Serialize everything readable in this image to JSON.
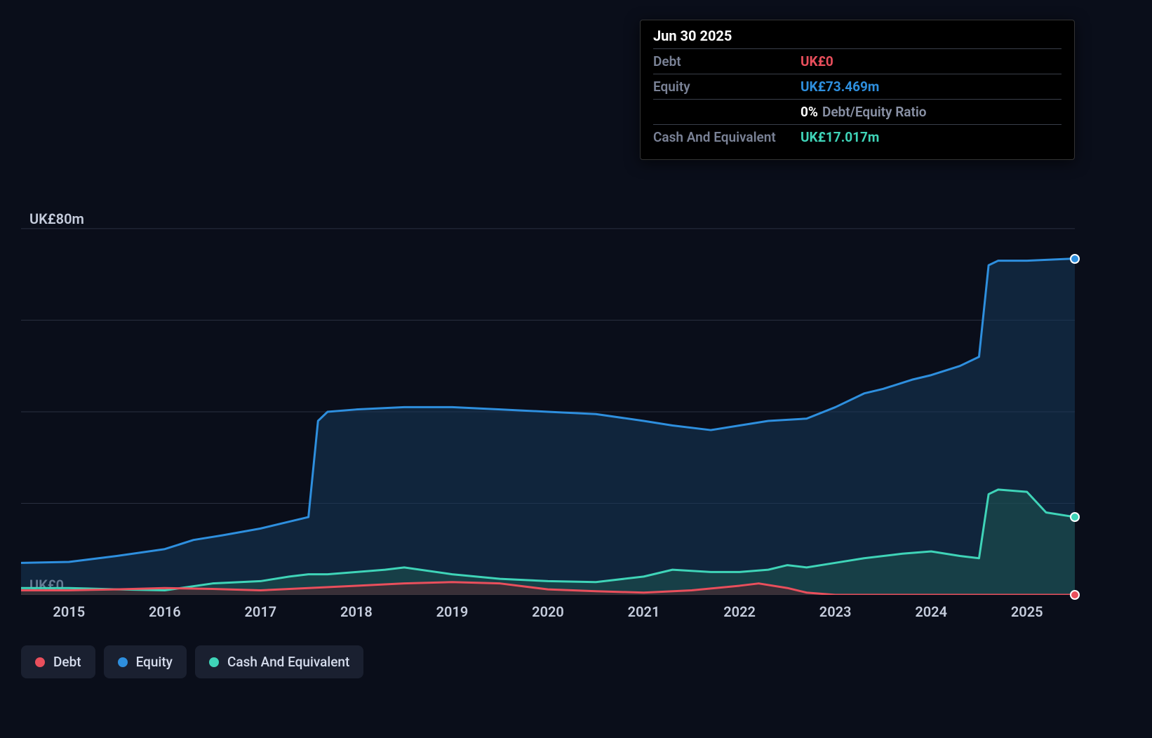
{
  "chart": {
    "type": "area",
    "background_color": "#0a0e1a",
    "grid_color": "#2a3040",
    "baseline_color": "#3d4558",
    "y_axis": {
      "min": 0,
      "max": 95,
      "labels": [
        {
          "value": 0,
          "text": "UK£0"
        },
        {
          "value": 80,
          "text": "UK£80m"
        }
      ],
      "gridlines": [
        0,
        20,
        40,
        60,
        80
      ],
      "label_color": "#c5ccdc",
      "label_fontsize": 20
    },
    "x_axis": {
      "min": 2014.5,
      "max": 2025.5,
      "ticks": [
        2015,
        2016,
        2017,
        2018,
        2019,
        2020,
        2021,
        2022,
        2023,
        2024,
        2025
      ],
      "label_color": "#c5ccdc",
      "label_fontsize": 20
    },
    "series": {
      "equity": {
        "label": "Equity",
        "color": "#2e8fde",
        "fill_color": "#16395a",
        "fill_opacity": 0.55,
        "line_width": 3,
        "points": [
          [
            2014.5,
            7
          ],
          [
            2015.0,
            7.2
          ],
          [
            2015.5,
            8.5
          ],
          [
            2016.0,
            10
          ],
          [
            2016.3,
            12
          ],
          [
            2016.6,
            13
          ],
          [
            2017.0,
            14.5
          ],
          [
            2017.3,
            16
          ],
          [
            2017.5,
            17
          ],
          [
            2017.6,
            38
          ],
          [
            2017.7,
            40
          ],
          [
            2018.0,
            40.5
          ],
          [
            2018.5,
            41
          ],
          [
            2019.0,
            41
          ],
          [
            2019.5,
            40.5
          ],
          [
            2020.0,
            40
          ],
          [
            2020.5,
            39.5
          ],
          [
            2021.0,
            38
          ],
          [
            2021.3,
            37
          ],
          [
            2021.7,
            36
          ],
          [
            2022.0,
            37
          ],
          [
            2022.3,
            38
          ],
          [
            2022.7,
            38.5
          ],
          [
            2023.0,
            41
          ],
          [
            2023.3,
            44
          ],
          [
            2023.5,
            45
          ],
          [
            2023.8,
            47
          ],
          [
            2024.0,
            48
          ],
          [
            2024.3,
            50
          ],
          [
            2024.5,
            52
          ],
          [
            2024.6,
            72
          ],
          [
            2024.7,
            73
          ],
          [
            2025.0,
            73
          ],
          [
            2025.5,
            73.469
          ]
        ]
      },
      "cash": {
        "label": "Cash And Equivalent",
        "color": "#3fd4b8",
        "fill_color": "#1d5a52",
        "fill_opacity": 0.5,
        "line_width": 3,
        "points": [
          [
            2014.5,
            1.5
          ],
          [
            2015.0,
            1.5
          ],
          [
            2015.5,
            1.2
          ],
          [
            2016.0,
            1.0
          ],
          [
            2016.5,
            2.5
          ],
          [
            2017.0,
            3
          ],
          [
            2017.3,
            4
          ],
          [
            2017.5,
            4.5
          ],
          [
            2017.7,
            4.5
          ],
          [
            2018.0,
            5
          ],
          [
            2018.3,
            5.5
          ],
          [
            2018.5,
            6
          ],
          [
            2019.0,
            4.5
          ],
          [
            2019.5,
            3.5
          ],
          [
            2020.0,
            3
          ],
          [
            2020.5,
            2.8
          ],
          [
            2021.0,
            4
          ],
          [
            2021.3,
            5.5
          ],
          [
            2021.7,
            5
          ],
          [
            2022.0,
            5
          ],
          [
            2022.3,
            5.5
          ],
          [
            2022.5,
            6.5
          ],
          [
            2022.7,
            6
          ],
          [
            2023.0,
            7
          ],
          [
            2023.3,
            8
          ],
          [
            2023.7,
            9
          ],
          [
            2024.0,
            9.5
          ],
          [
            2024.3,
            8.5
          ],
          [
            2024.5,
            8
          ],
          [
            2024.6,
            22
          ],
          [
            2024.7,
            23
          ],
          [
            2025.0,
            22.5
          ],
          [
            2025.2,
            18
          ],
          [
            2025.5,
            17.017
          ]
        ]
      },
      "debt": {
        "label": "Debt",
        "color": "#e94f5c",
        "fill_color": "#5a1f28",
        "fill_opacity": 0.5,
        "line_width": 3,
        "points": [
          [
            2014.5,
            1
          ],
          [
            2015.0,
            1
          ],
          [
            2015.5,
            1.2
          ],
          [
            2016.0,
            1.5
          ],
          [
            2016.5,
            1.3
          ],
          [
            2017.0,
            1
          ],
          [
            2017.5,
            1.5
          ],
          [
            2018.0,
            2
          ],
          [
            2018.5,
            2.5
          ],
          [
            2019.0,
            2.8
          ],
          [
            2019.5,
            2.5
          ],
          [
            2020.0,
            1.2
          ],
          [
            2020.5,
            0.8
          ],
          [
            2021.0,
            0.5
          ],
          [
            2021.5,
            1
          ],
          [
            2022.0,
            2
          ],
          [
            2022.2,
            2.5
          ],
          [
            2022.5,
            1.5
          ],
          [
            2022.7,
            0.5
          ],
          [
            2023.0,
            0
          ],
          [
            2023.5,
            0
          ],
          [
            2024.0,
            0
          ],
          [
            2024.5,
            0
          ],
          [
            2025.0,
            0
          ],
          [
            2025.5,
            0
          ]
        ]
      }
    },
    "end_markers": [
      {
        "series": "equity",
        "color": "#2e8fde"
      },
      {
        "series": "cash",
        "color": "#3fd4b8"
      },
      {
        "series": "debt",
        "color": "#e94f5c"
      }
    ]
  },
  "tooltip": {
    "date": "Jun 30 2025",
    "rows": [
      {
        "label": "Debt",
        "value": "UK£0",
        "value_color": "#e94f5c"
      },
      {
        "label": "Equity",
        "value": "UK£73.469m",
        "value_color": "#2e8fde"
      },
      {
        "label": "",
        "value": "0%",
        "value_color": "#ffffff",
        "suffix": "Debt/Equity Ratio"
      },
      {
        "label": "Cash And Equivalent",
        "value": "UK£17.017m",
        "value_color": "#3fd4b8"
      }
    ]
  },
  "legend": {
    "items": [
      {
        "key": "debt",
        "label": "Debt",
        "color": "#e94f5c"
      },
      {
        "key": "equity",
        "label": "Equity",
        "color": "#2e8fde"
      },
      {
        "key": "cash",
        "label": "Cash And Equivalent",
        "color": "#3fd4b8"
      }
    ],
    "bg_color": "#1a2030",
    "text_color": "#d5dcec"
  }
}
